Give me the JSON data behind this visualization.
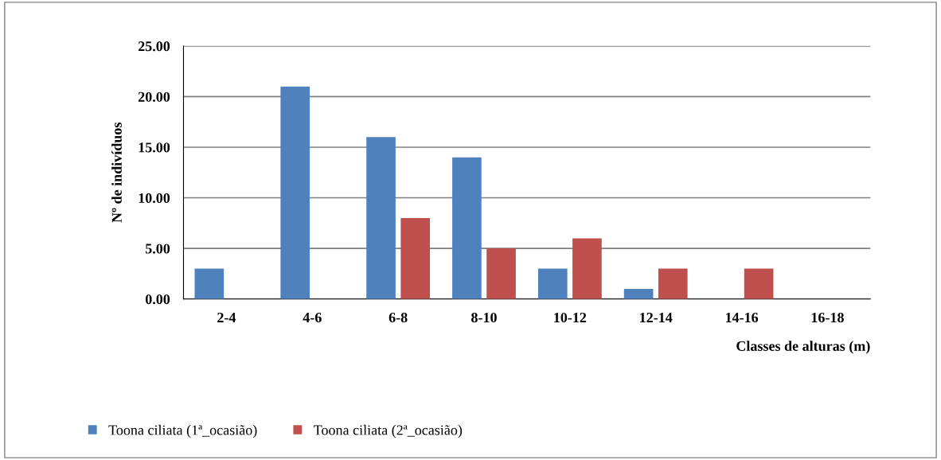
{
  "chart_data": {
    "type": "bar",
    "xlabel": "Classes de alturas (m)",
    "ylabel": "Nº de indivíduos",
    "categories": [
      "2-4",
      "4-6",
      "6-8",
      "8-10",
      "10-12",
      "12-14",
      "14-16",
      "16-18"
    ],
    "series": [
      {
        "name": "Toona ciliata (1ª_ocasião)",
        "color": "#4f81bd",
        "values": [
          3,
          21,
          16,
          14,
          3,
          1,
          0,
          0
        ]
      },
      {
        "name": "Toona ciliata (2ª_ocasião)",
        "color": "#c0504d",
        "values": [
          0,
          0,
          8,
          5,
          6,
          3,
          3,
          0
        ]
      }
    ],
    "ylim": [
      0,
      25
    ],
    "yticks": [
      {
        "value": 0,
        "label": "0.00"
      },
      {
        "value": 5,
        "label": "5.00"
      },
      {
        "value": 10,
        "label": "10.00"
      },
      {
        "value": 15,
        "label": "15.00"
      },
      {
        "value": 20,
        "label": "20.00"
      },
      {
        "value": 25,
        "label": "25.00"
      }
    ],
    "grid": "y",
    "legend": "bottom left"
  }
}
